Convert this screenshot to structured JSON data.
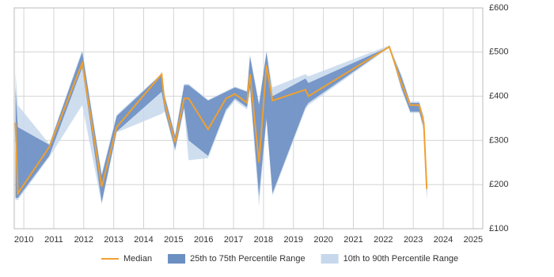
{
  "chart_data": {
    "type": "line",
    "x": [
      2009.72,
      2009.8,
      2010.85,
      2011.95,
      2012.6,
      2013.1,
      2014.6,
      2014.7,
      2015.05,
      2015.35,
      2015.5,
      2016.15,
      2016.75,
      2017.05,
      2017.45,
      2017.55,
      2017.85,
      2018.1,
      2018.3,
      2019.4,
      2019.5,
      2022.2,
      2022.6,
      2022.9,
      2023.2,
      2023.35,
      2023.45
    ],
    "series": [
      {
        "name": "Median",
        "color": "#f0a030",
        "values": [
          340,
          180,
          285,
          475,
          195,
          330,
          450,
          385,
          295,
          395,
          395,
          325,
          395,
          405,
          385,
          450,
          250,
          470,
          390,
          415,
          400,
          512,
          430,
          380,
          380,
          340,
          190
        ]
      },
      {
        "name": "25th to 75th Percentile Range",
        "color": "#6b8fc2",
        "low": [
          170,
          170,
          265,
          465,
          160,
          320,
          410,
          370,
          280,
          375,
          300,
          265,
          370,
          395,
          375,
          420,
          175,
          350,
          180,
          375,
          385,
          512,
          420,
          365,
          365,
          330,
          170
        ],
        "high": [
          420,
          330,
          290,
          500,
          220,
          355,
          450,
          400,
          310,
          425,
          425,
          390,
          410,
          420,
          410,
          490,
          380,
          500,
          400,
          440,
          430,
          512,
          445,
          385,
          385,
          350,
          190
        ]
      },
      {
        "name": "10th to 90th Percentile Range",
        "color": "#c7d8ec",
        "low": [
          165,
          165,
          262,
          380,
          155,
          318,
          360,
          365,
          275,
          370,
          255,
          260,
          365,
          390,
          370,
          415,
          150,
          345,
          175,
          370,
          380,
          510,
          415,
          362,
          362,
          320,
          165
        ],
        "high": [
          455,
          380,
          292,
          505,
          225,
          358,
          452,
          405,
          312,
          428,
          428,
          392,
          412,
          422,
          412,
          495,
          385,
          502,
          420,
          450,
          445,
          515,
          450,
          388,
          388,
          355,
          195
        ]
      }
    ],
    "xlim": [
      2009.68,
      2025.32
    ],
    "xticks": [
      2010,
      2011,
      2012,
      2013,
      2014,
      2015,
      2016,
      2017,
      2018,
      2019,
      2020,
      2021,
      2022,
      2023,
      2024,
      2025
    ],
    "ylim": [
      100,
      600
    ],
    "yticks": [
      {
        "value": 100,
        "label": "£100"
      },
      {
        "value": 200,
        "label": "£200"
      },
      {
        "value": 300,
        "label": "£300"
      },
      {
        "value": 400,
        "label": "£400"
      },
      {
        "value": 500,
        "label": "£500"
      },
      {
        "value": 600,
        "label": "£600"
      }
    ],
    "grid": true
  }
}
